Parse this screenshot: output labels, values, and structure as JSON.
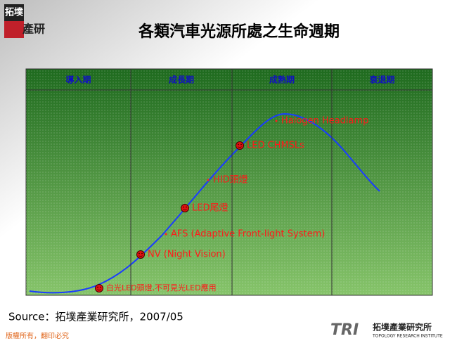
{
  "title": "各類汽車光源所處之生命週期",
  "logo": {
    "top": "拓墣",
    "bottom": "產研"
  },
  "phases": [
    "導入期",
    "成長期",
    "成熟期",
    "衰退期"
  ],
  "items": [
    {
      "label": "Halogen Headlamp",
      "marker": "bullet"
    },
    {
      "label": "LED CHMSLs",
      "marker": "smiley"
    },
    {
      "label": "HID頭燈",
      "marker": "bullet"
    },
    {
      "label": "LED尾燈",
      "marker": "smiley"
    },
    {
      "label": "AFS (Adaptive Front-light System)",
      "marker": "bullet"
    },
    {
      "label": "NV (Night Vision)",
      "marker": "smiley"
    },
    {
      "label": "白光LED頭燈,不可見光LED應用",
      "marker": "smiley"
    }
  ],
  "source": "Source：拓墣產業研究所，2007/05",
  "footer": {
    "copyright": "版權所有，翻印必究",
    "brand": "TRI",
    "org": "拓墣產業研究所",
    "org_en": "TOPOLOGY RESEARCH INSTITUTE"
  }
}
